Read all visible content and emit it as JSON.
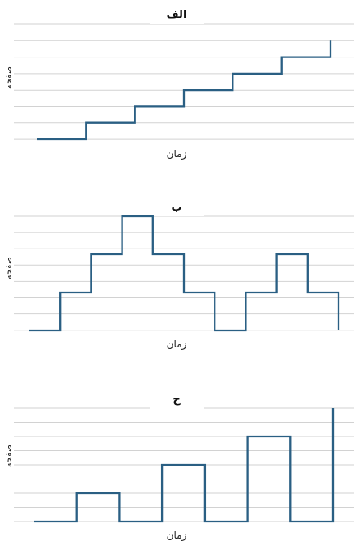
{
  "chart_data": [
    {
      "type": "line",
      "step": true,
      "title": "الف",
      "xlabel": "زمان",
      "ylabel": "صفحه",
      "grid": true,
      "color": "#2a5f83",
      "ylim": [
        0,
        7
      ],
      "x": [
        0,
        1,
        2,
        3,
        4,
        5,
        6
      ],
      "series": [
        {
          "values": [
            0,
            1,
            2,
            3,
            4,
            5,
            6
          ]
        }
      ]
    },
    {
      "type": "line",
      "step": true,
      "title": "ب",
      "xlabel": "زمان",
      "ylabel": "صفحه",
      "grid": true,
      "color": "#2a5f83",
      "ylim": [
        0,
        6
      ],
      "x": [
        0,
        1,
        2,
        3,
        4,
        5,
        6,
        7,
        8,
        9,
        10
      ],
      "series": [
        {
          "values": [
            0,
            2,
            4,
            6,
            4,
            2,
            0,
            2,
            4,
            2,
            0
          ]
        }
      ]
    },
    {
      "type": "line",
      "step": true,
      "title": "ج",
      "xlabel": "زمان",
      "ylabel": "صفحه",
      "grid": true,
      "color": "#2a5f83",
      "ylim": [
        0,
        8
      ],
      "x": [
        0,
        1,
        2,
        3,
        4,
        5,
        6,
        7
      ],
      "series": [
        {
          "values": [
            0,
            2,
            0,
            4,
            0,
            6,
            0,
            8
          ]
        }
      ]
    }
  ]
}
